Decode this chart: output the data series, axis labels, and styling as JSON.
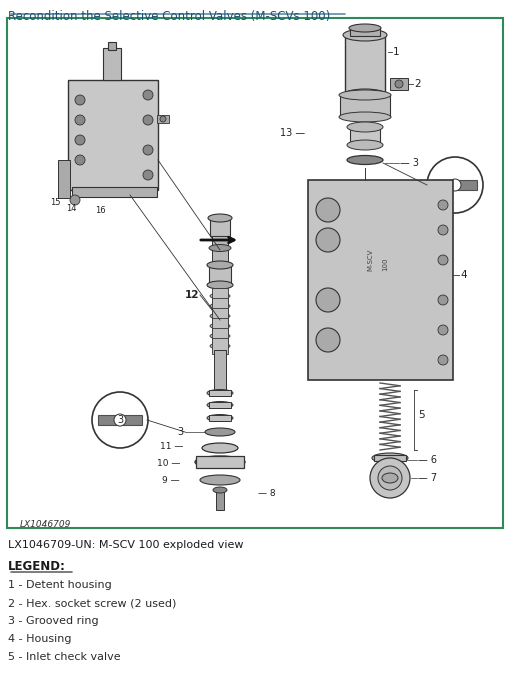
{
  "title": "Recondition the Selective Control Valves (M-SCVs 100)",
  "title_color": "#1a5276",
  "title_underline": true,
  "diagram_border_color": "#2e8b57",
  "figure_bg": "#ffffff",
  "caption": "LX1046709-UN: M-SCV 100 exploded view",
  "legend_title": "LEGEND:",
  "legend_items": [
    "1 - Detent housing",
    "2 - Hex. socket screw (2 used)",
    "3 - Grooved ring",
    "4 - Housing",
    "5 - Inlet check valve"
  ],
  "watermark": "LX1046709",
  "text_color": "#1a1a1a",
  "legend_color": "#2c2c2c"
}
